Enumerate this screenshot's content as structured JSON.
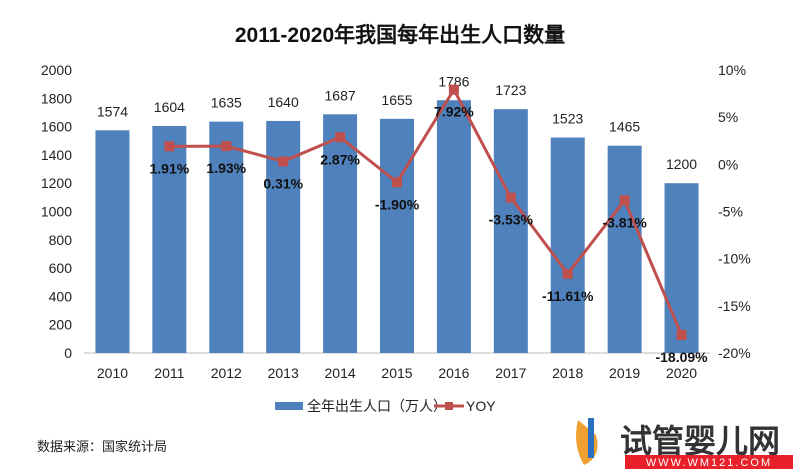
{
  "chart_data": {
    "type": "bar+line",
    "title": "2011-2020年我国每年出生人口数量",
    "categories": [
      "2010",
      "2011",
      "2012",
      "2013",
      "2014",
      "2015",
      "2016",
      "2017",
      "2018",
      "2019",
      "2020"
    ],
    "series": [
      {
        "name": "全年出生人口（万人）",
        "type": "bar",
        "axis": "left",
        "values": [
          1574,
          1604,
          1635,
          1640,
          1687,
          1655,
          1786,
          1723,
          1523,
          1465,
          1200
        ],
        "labels": [
          "1574",
          "1604",
          "1635",
          "1640",
          "1687",
          "1655",
          "1786",
          "1723",
          "1523",
          "1465",
          "1200"
        ]
      },
      {
        "name": "YOY",
        "type": "line",
        "axis": "right",
        "values": [
          null,
          1.91,
          1.93,
          0.31,
          2.87,
          -1.9,
          7.92,
          -3.53,
          -11.61,
          -3.81,
          -18.09
        ],
        "labels": [
          "",
          "1.91%",
          "1.93%",
          "0.31%",
          "2.87%",
          "-1.90%",
          "7.92%",
          "-3.53%",
          "-11.61%",
          "-3.81%",
          "-18.09%"
        ]
      }
    ],
    "left_axis": {
      "range": [
        0,
        2000
      ],
      "ticks": [
        "0",
        "200",
        "400",
        "600",
        "800",
        "1000",
        "1200",
        "1400",
        "1600",
        "1800",
        "2000"
      ]
    },
    "right_axis": {
      "range": [
        -20,
        10
      ],
      "ticks": [
        "-20%",
        "-15%",
        "-10%",
        "-5%",
        "0%",
        "5%",
        "10%"
      ]
    },
    "grid": false,
    "legend_position": "bottom",
    "colors": {
      "bar": "#4f81bd",
      "line": "#c0504d"
    }
  },
  "source_note": "数据来源：国家统计局",
  "watermark": {
    "text": "试管婴儿网",
    "url_text": "WWW.WM121.COM"
  }
}
